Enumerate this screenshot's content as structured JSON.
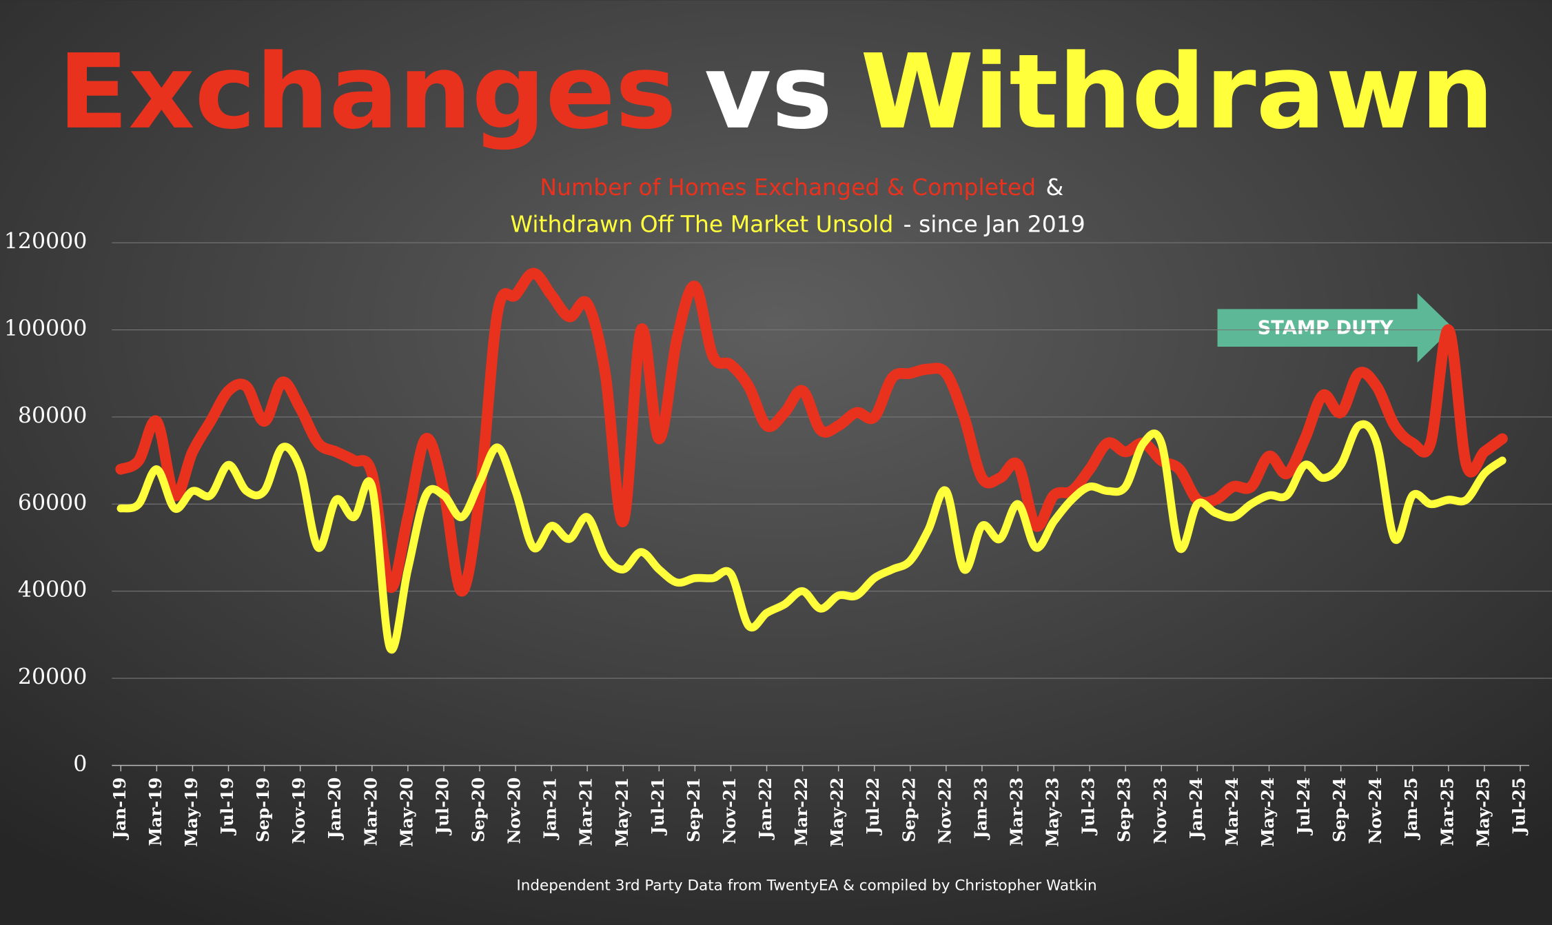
{
  "chart_data": {
    "type": "line",
    "title": [
      {
        "text": "Exchanges",
        "color": "#e8321e"
      },
      {
        "text": "vs",
        "color": "#ffffff"
      },
      {
        "text": "Withdrawn",
        "color": "#ffff3c"
      }
    ],
    "subtitle": [
      [
        {
          "text": "Number of Homes Exchanged & Completed",
          "color": "#e8321e"
        },
        {
          "text": "&",
          "color": "#ffffff"
        }
      ],
      [
        {
          "text": "Withdrawn Off The Market Unsold",
          "color": "#ffff3c"
        },
        {
          "text": "- since Jan 2019",
          "color": "#ffffff"
        }
      ]
    ],
    "annotation": {
      "text": "STAMP DUTY",
      "color": "#5cb896"
    },
    "source": "Independent 3rd Party Data from TwentyEA  & compiled by Christopher Watkin",
    "categories": [
      "Jan-19",
      null,
      "Mar-19",
      null,
      "May-19",
      null,
      "Jul-19",
      null,
      "Sep-19",
      null,
      "Nov-19",
      null,
      "Jan-20",
      null,
      "Mar-20",
      null,
      "May-20",
      null,
      "Jul-20",
      null,
      "Sep-20",
      null,
      "Nov-20",
      null,
      "Jan-21",
      null,
      "Mar-21",
      null,
      "May-21",
      null,
      "Jul-21",
      null,
      "Sep-21",
      null,
      "Nov-21",
      null,
      "Jan-22",
      null,
      "Mar-22",
      null,
      "May-22",
      null,
      "Jul-22",
      null,
      "Sep-22",
      null,
      "Nov-22",
      null,
      "Jan-23",
      null,
      "Mar-23",
      null,
      "May-23",
      null,
      "Jul-23",
      null,
      "Sep-23",
      null,
      "Nov-23",
      null,
      "Jan-24",
      null,
      "Mar-24",
      null,
      "May-24",
      null,
      "Jul-24",
      null,
      "Sep-24",
      null,
      "Nov-24",
      null,
      "Jan-25",
      null,
      "Mar-25",
      null,
      "May-25",
      null,
      "Jul-25"
    ],
    "series": [
      {
        "color": "#e8321e",
        "values": [
          68000,
          70000,
          79000,
          62000,
          72000,
          79000,
          86000,
          87000,
          79000,
          88000,
          82000,
          74000,
          72000,
          70000,
          67000,
          41000,
          57000,
          75000,
          63000,
          40000,
          62000,
          104000,
          108000,
          113000,
          108000,
          103000,
          106000,
          90000,
          56000,
          100000,
          75000,
          98000,
          110000,
          94000,
          92000,
          87000,
          78000,
          81000,
          86000,
          77000,
          78000,
          81000,
          80000,
          89000,
          90000,
          91000,
          90000,
          80000,
          66000,
          66000,
          69000,
          55000,
          62000,
          63000,
          68000,
          74000,
          72000,
          74000,
          70000,
          68000,
          61000,
          61000,
          64000,
          64000,
          71000,
          67000,
          75000,
          85000,
          81000,
          90000,
          87000,
          78000,
          74000,
          74000,
          100000,
          69000,
          72000,
          75000,
          null
        ]
      },
      {
        "color": "#ffff3c",
        "values": [
          59000,
          60000,
          68000,
          59000,
          63000,
          62000,
          69000,
          63000,
          63000,
          73000,
          68000,
          50000,
          61000,
          57000,
          64000,
          27000,
          45000,
          62000,
          62000,
          57000,
          65000,
          73000,
          63000,
          50000,
          55000,
          52000,
          57000,
          48000,
          45000,
          49000,
          45000,
          42000,
          43000,
          43000,
          44000,
          32000,
          35000,
          37000,
          40000,
          36000,
          39000,
          39000,
          43000,
          45000,
          47000,
          54000,
          63000,
          45000,
          55000,
          52000,
          60000,
          50000,
          56000,
          61000,
          64000,
          63000,
          64000,
          74000,
          74000,
          50000,
          60000,
          58000,
          57000,
          60000,
          62000,
          62000,
          69000,
          66000,
          69000,
          78000,
          74000,
          52000,
          62000,
          60000,
          61000,
          61000,
          67000,
          70000,
          null
        ]
      }
    ],
    "ylim": [
      0,
      120000
    ],
    "yticks": [
      0,
      20000,
      40000,
      60000,
      80000,
      100000,
      120000
    ],
    "grid": true
  }
}
